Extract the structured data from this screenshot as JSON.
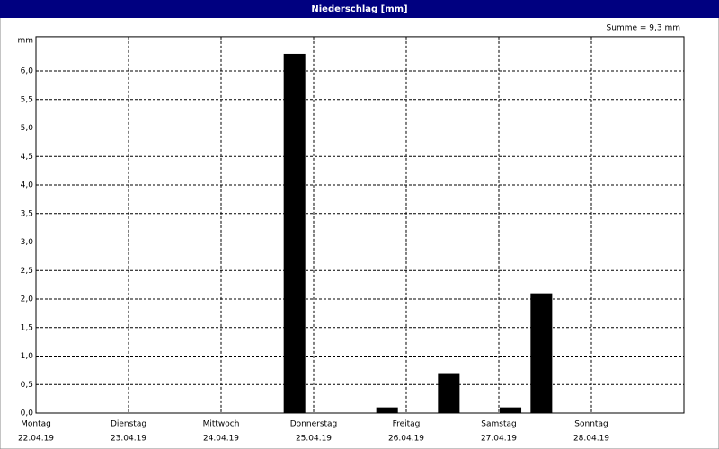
{
  "chart_data": {
    "type": "bar",
    "title": "Niederschlag [mm]",
    "y_unit": "mm",
    "annotation": "Summe = 9,3 mm",
    "categories": [
      "Montag",
      null,
      null,
      "Dienstag",
      null,
      null,
      "Mittwoch",
      null,
      null,
      "Donnerstag",
      null,
      null,
      "Freitag",
      null,
      null,
      "Samstag",
      null,
      null,
      "Sonntag",
      null,
      null
    ],
    "dates": [
      "22.04.19",
      null,
      null,
      "23.04.19",
      null,
      null,
      "24.04.19",
      null,
      null,
      "25.04.19",
      null,
      null,
      "26.04.19",
      null,
      null,
      "27.04.19",
      null,
      null,
      "28.04.19",
      null,
      null
    ],
    "values": [
      0,
      0,
      0,
      0,
      0,
      0,
      0,
      0,
      6.3,
      0,
      0,
      0.1,
      0,
      0.7,
      0,
      0.1,
      2.1,
      0,
      0,
      0,
      0
    ],
    "color": "#000000",
    "ylim": [
      0,
      6.6
    ],
    "yticks": [
      {
        "value": 0,
        "label": "0,0"
      },
      {
        "value": 0.5,
        "label": "0,5"
      },
      {
        "value": 1,
        "label": "1,0"
      },
      {
        "value": 1.5,
        "label": "1,5"
      },
      {
        "value": 2,
        "label": "2,0"
      },
      {
        "value": 2.5,
        "label": "2,5"
      },
      {
        "value": 3,
        "label": "3,0"
      },
      {
        "value": 3.5,
        "label": "3,5"
      },
      {
        "value": 4,
        "label": "4,0"
      },
      {
        "value": 4.5,
        "label": "4,5"
      },
      {
        "value": 5,
        "label": "5,0"
      },
      {
        "value": 5.5,
        "label": "5,5"
      },
      {
        "value": 6,
        "label": "6,0"
      }
    ],
    "grid": true
  }
}
